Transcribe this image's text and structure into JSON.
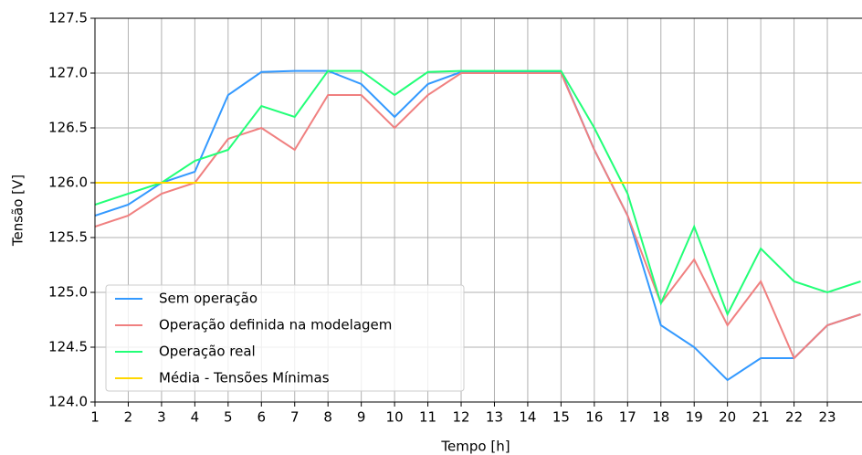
{
  "chart_data": {
    "type": "line",
    "xlabel": "Tempo [h]",
    "ylabel": "Tensão [V]",
    "x": [
      1,
      2,
      3,
      4,
      5,
      6,
      7,
      8,
      9,
      10,
      11,
      12,
      13,
      14,
      15,
      16,
      17,
      18,
      19,
      20,
      21,
      22,
      23,
      24
    ],
    "series": [
      {
        "name": "Sem operação",
        "color": "#3399ff",
        "values": [
          125.7,
          125.8,
          126.0,
          126.1,
          126.8,
          127.01,
          127.02,
          127.02,
          126.9,
          126.6,
          126.9,
          127.01,
          127.01,
          127.01,
          127.01,
          126.3,
          125.7,
          124.7,
          124.5,
          124.2,
          124.4,
          124.4,
          124.7,
          124.8
        ]
      },
      {
        "name": "Operação definida na modelagem",
        "color": "#f08080",
        "values": [
          125.6,
          125.7,
          125.9,
          126.0,
          126.4,
          126.5,
          126.3,
          126.8,
          126.8,
          126.5,
          126.8,
          127.0,
          127.0,
          127.0,
          127.0,
          126.3,
          125.7,
          124.9,
          125.3,
          124.7,
          125.1,
          124.4,
          124.7,
          124.8
        ]
      },
      {
        "name": "Operação real",
        "color": "#22ff77",
        "values": [
          125.8,
          125.9,
          126.0,
          126.2,
          126.3,
          126.7,
          126.6,
          127.02,
          127.02,
          126.8,
          127.01,
          127.02,
          127.02,
          127.02,
          127.02,
          126.5,
          125.9,
          124.9,
          125.6,
          124.8,
          125.4,
          125.1,
          125.0,
          125.1
        ]
      },
      {
        "name": "Média - Tensões Mínimas",
        "color": "#ffd700",
        "values": [
          126,
          126,
          126,
          126,
          126,
          126,
          126,
          126,
          126,
          126,
          126,
          126,
          126,
          126,
          126,
          126,
          126,
          126,
          126,
          126,
          126,
          126,
          126,
          126
        ]
      }
    ],
    "xlim": [
      1,
      24
    ],
    "xticks": [
      1,
      2,
      3,
      4,
      5,
      6,
      7,
      8,
      9,
      10,
      11,
      12,
      13,
      14,
      15,
      16,
      17,
      18,
      19,
      20,
      21,
      22,
      23
    ],
    "ylim": [
      124,
      127.5
    ],
    "yticks": [
      {
        "value": 124,
        "label": "124.0"
      },
      {
        "value": 124.5,
        "label": "124.5"
      },
      {
        "value": 125,
        "label": "125.0"
      },
      {
        "value": 125.5,
        "label": "125.5"
      },
      {
        "value": 126,
        "label": "126.0"
      },
      {
        "value": 126.5,
        "label": "126.5"
      },
      {
        "value": 127,
        "label": "127.0"
      },
      {
        "value": 127.5,
        "label": "127.5"
      }
    ],
    "grid": true,
    "legend": "lower left"
  }
}
